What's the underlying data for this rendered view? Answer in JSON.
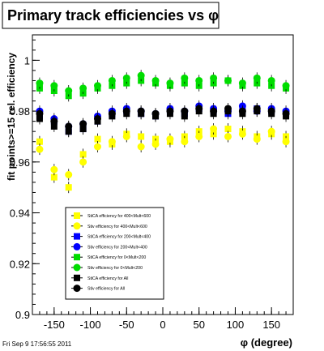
{
  "chart_data": {
    "type": "scatter",
    "title": "Primary track efficiencies vs φ",
    "xlabel": "φ (degree)",
    "ylabel": "fit points>=15 rel. efficiency",
    "xlim": [
      -180,
      180
    ],
    "ylim": [
      0.9,
      1.01
    ],
    "x_ticks": [
      -150,
      -100,
      -50,
      0,
      50,
      100,
      150
    ],
    "x_tick_labels": [
      "-150",
      "-100",
      "-50",
      "0",
      "50",
      "100",
      "150"
    ],
    "y_ticks": [
      0.9,
      0.92,
      0.94,
      0.96,
      0.98,
      1.0
    ],
    "y_tick_labels": [
      "0.9",
      "0.92",
      "0.94",
      "0.96",
      "0.98",
      "1"
    ],
    "grid": false,
    "legend_position": "bottom-left",
    "series": [
      {
        "name": "StiCA efficiency  for 400<Mult<600",
        "color": "#ffff00",
        "marker": "square",
        "x": [
          -170,
          -150,
          -130,
          -110,
          -90,
          -70,
          -50,
          -30,
          -10,
          10,
          30,
          50,
          70,
          90,
          110,
          130,
          150,
          170
        ],
        "y": [
          0.968,
          0.954,
          0.95,
          0.963,
          0.969,
          0.967,
          0.971,
          0.97,
          0.969,
          0.968,
          0.97,
          0.972,
          0.971,
          0.973,
          0.972,
          0.97,
          0.971,
          0.97
        ]
      },
      {
        "name": "Stiv efficiency  for 400<Mult<600",
        "color": "#ffff00",
        "marker": "circle",
        "x": [
          -170,
          -150,
          -130,
          -110,
          -90,
          -70,
          -50,
          -30,
          -10,
          10,
          30,
          50,
          70,
          90,
          110,
          130,
          150,
          170
        ],
        "y": [
          0.965,
          0.957,
          0.955,
          0.96,
          0.966,
          0.968,
          0.97,
          0.966,
          0.967,
          0.969,
          0.968,
          0.97,
          0.973,
          0.97,
          0.971,
          0.969,
          0.972,
          0.968
        ]
      },
      {
        "name": "StiCA efficiency  for 200<Mult<400",
        "color": "#0000ff",
        "marker": "square",
        "x": [
          -170,
          -150,
          -130,
          -110,
          -90,
          -70,
          -50,
          -30,
          -10,
          10,
          30,
          50,
          70,
          90,
          110,
          130,
          150,
          170
        ],
        "y": [
          0.978,
          0.976,
          0.972,
          0.973,
          0.976,
          0.979,
          0.98,
          0.979,
          0.978,
          0.98,
          0.979,
          0.981,
          0.98,
          0.979,
          0.98,
          0.981,
          0.98,
          0.979
        ]
      },
      {
        "name": "Stiv efficiency  for 200<Mult<400",
        "color": "#0000ff",
        "marker": "circle",
        "x": [
          -170,
          -150,
          -130,
          -110,
          -90,
          -70,
          -50,
          -30,
          -10,
          10,
          30,
          50,
          70,
          90,
          110,
          130,
          150,
          170
        ],
        "y": [
          0.98,
          0.977,
          0.974,
          0.975,
          0.978,
          0.98,
          0.981,
          0.98,
          0.979,
          0.981,
          0.98,
          0.982,
          0.981,
          0.98,
          0.982,
          0.98,
          0.981,
          0.98
        ]
      },
      {
        "name": "StiCA efficiency  for 0<Mult<200",
        "color": "#00dd00",
        "marker": "square",
        "x": [
          -170,
          -150,
          -130,
          -110,
          -90,
          -70,
          -50,
          -30,
          -10,
          10,
          30,
          50,
          70,
          90,
          110,
          130,
          150,
          170
        ],
        "y": [
          0.989,
          0.988,
          0.986,
          0.987,
          0.989,
          0.99,
          0.991,
          0.992,
          0.991,
          0.99,
          0.991,
          0.99,
          0.991,
          0.992,
          0.99,
          0.991,
          0.99,
          0.989
        ]
      },
      {
        "name": "Stiv efficiency  for 0<Mult<200",
        "color": "#00dd00",
        "marker": "circle",
        "x": [
          -170,
          -150,
          -130,
          -110,
          -90,
          -70,
          -50,
          -30,
          -10,
          10,
          30,
          50,
          70,
          90,
          110,
          130,
          150,
          170
        ],
        "y": [
          0.991,
          0.99,
          0.988,
          0.989,
          0.99,
          0.992,
          0.993,
          0.994,
          0.992,
          0.991,
          0.993,
          0.992,
          0.993,
          0.992,
          0.991,
          0.993,
          0.992,
          0.99
        ]
      },
      {
        "name": "StiCA efficiency  for All",
        "color": "#000000",
        "marker": "square",
        "x": [
          -170,
          -150,
          -130,
          -110,
          -90,
          -70,
          -50,
          -30,
          -10,
          10,
          30,
          50,
          70,
          90,
          110,
          130,
          150,
          170
        ],
        "y": [
          0.977,
          0.974,
          0.972,
          0.973,
          0.976,
          0.978,
          0.979,
          0.979,
          0.978,
          0.979,
          0.978,
          0.98,
          0.979,
          0.98,
          0.979,
          0.98,
          0.979,
          0.978
        ]
      },
      {
        "name": "Stiv efficiency  for All",
        "color": "#000000",
        "marker": "circle",
        "x": [
          -170,
          -150,
          -130,
          -110,
          -90,
          -70,
          -50,
          -30,
          -10,
          10,
          30,
          50,
          70,
          90,
          110,
          130,
          150,
          170
        ],
        "y": [
          0.979,
          0.976,
          0.974,
          0.975,
          0.977,
          0.979,
          0.98,
          0.98,
          0.979,
          0.98,
          0.98,
          0.981,
          0.98,
          0.981,
          0.98,
          0.981,
          0.98,
          0.979
        ]
      }
    ]
  },
  "footer": {
    "timestamp": "Fri Sep  9 17:56:55 2011"
  }
}
